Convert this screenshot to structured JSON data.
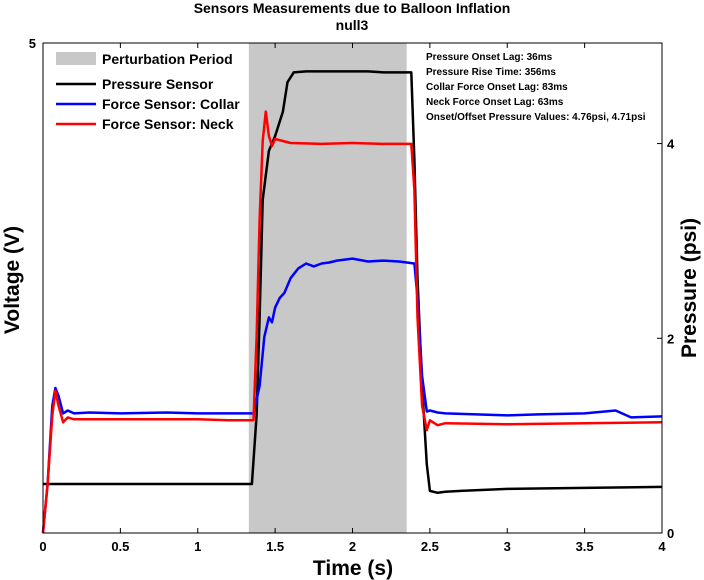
{
  "chart_data": {
    "type": "line",
    "title": "Sensors Measurements due to Balloon Inflation",
    "subtitle": "null3",
    "xlabel": "Time (s)",
    "ylabel": "Voltage (V)",
    "y2label": "Pressure (psi)",
    "xlim": [
      0,
      4
    ],
    "ylim": [
      0,
      5
    ],
    "y2lim": [
      0,
      5.033
    ],
    "x_ticks": [
      "0",
      "0.5",
      "1",
      "1.5",
      "2",
      "2.5",
      "3",
      "3.5",
      "4"
    ],
    "y_ticks": [
      "5"
    ],
    "y2_ticks": [
      "0",
      "2",
      "4"
    ],
    "grid": false,
    "legend_position": "top-left",
    "legend": [
      {
        "label": "Perturbation Period",
        "color": "#c8c8c8",
        "kind": "patch"
      },
      {
        "label": "Pressure Sensor",
        "color": "#000000",
        "kind": "line"
      },
      {
        "label": "Force Sensor: Collar",
        "color": "#0000ff",
        "kind": "line"
      },
      {
        "label": "Force Sensor: Neck",
        "color": "#ff0000",
        "kind": "line"
      }
    ],
    "shaded_region": {
      "x_start": 1.33,
      "x_end": 2.35,
      "color": "#c8c8c8"
    },
    "annotations": [
      "Pressure Onset Lag: 36ms",
      "Pressure Rise Time: 356ms",
      "Collar Force Onset Lag: 83ms",
      "Neck Force Onset Lag: 63ms",
      "Onset/Offset Pressure Values: 4.76psi, 4.71psi"
    ],
    "series": [
      {
        "name": "Pressure Sensor",
        "color": "#000000",
        "axis": "left",
        "x": [
          0,
          0.5,
          1.0,
          1.3,
          1.35,
          1.38,
          1.4,
          1.42,
          1.46,
          1.5,
          1.55,
          1.58,
          1.62,
          1.7,
          1.8,
          1.9,
          2.0,
          2.1,
          2.2,
          2.3,
          2.38,
          2.4,
          2.42,
          2.45,
          2.48,
          2.5,
          2.55,
          2.6,
          2.7,
          3.0,
          3.5,
          4.0
        ],
        "y": [
          0.5,
          0.5,
          0.5,
          0.5,
          0.5,
          1.2,
          2.2,
          3.4,
          3.9,
          4.05,
          4.3,
          4.6,
          4.7,
          4.71,
          4.71,
          4.71,
          4.71,
          4.71,
          4.7,
          4.7,
          4.7,
          3.8,
          2.6,
          1.5,
          0.7,
          0.43,
          0.41,
          0.42,
          0.43,
          0.45,
          0.46,
          0.47
        ]
      },
      {
        "name": "Force Sensor: Collar",
        "color": "#0000ff",
        "axis": "left",
        "x": [
          0.0,
          0.03,
          0.06,
          0.08,
          0.1,
          0.13,
          0.16,
          0.2,
          0.3,
          0.5,
          0.8,
          1.0,
          1.2,
          1.36,
          1.4,
          1.43,
          1.46,
          1.48,
          1.5,
          1.53,
          1.56,
          1.6,
          1.65,
          1.7,
          1.75,
          1.8,
          1.85,
          1.9,
          2.0,
          2.1,
          2.2,
          2.3,
          2.4,
          2.42,
          2.45,
          2.48,
          2.5,
          2.55,
          2.6,
          3.0,
          3.2,
          3.5,
          3.7,
          3.8,
          4.0
        ],
        "y": [
          0.0,
          0.5,
          1.3,
          1.48,
          1.4,
          1.22,
          1.25,
          1.22,
          1.23,
          1.22,
          1.23,
          1.22,
          1.22,
          1.22,
          1.5,
          2.0,
          2.2,
          2.15,
          2.3,
          2.4,
          2.45,
          2.6,
          2.7,
          2.75,
          2.72,
          2.75,
          2.76,
          2.78,
          2.8,
          2.77,
          2.78,
          2.77,
          2.75,
          2.4,
          1.6,
          1.24,
          1.25,
          1.23,
          1.22,
          1.2,
          1.21,
          1.22,
          1.25,
          1.18,
          1.19
        ]
      },
      {
        "name": "Force Sensor: Neck",
        "color": "#ff0000",
        "axis": "left",
        "x": [
          0.0,
          0.03,
          0.06,
          0.08,
          0.1,
          0.13,
          0.16,
          0.2,
          0.3,
          0.5,
          0.8,
          1.0,
          1.2,
          1.36,
          1.38,
          1.4,
          1.42,
          1.44,
          1.46,
          1.48,
          1.5,
          1.55,
          1.6,
          1.8,
          2.0,
          2.2,
          2.38,
          2.4,
          2.42,
          2.45,
          2.48,
          2.5,
          2.55,
          2.6,
          3.0,
          3.5,
          4.0
        ],
        "y": [
          0.0,
          0.5,
          1.2,
          1.45,
          1.3,
          1.13,
          1.18,
          1.16,
          1.16,
          1.16,
          1.16,
          1.16,
          1.15,
          1.15,
          2.0,
          3.2,
          4.0,
          4.3,
          4.05,
          3.95,
          4.02,
          4.0,
          3.98,
          3.97,
          3.98,
          3.97,
          3.97,
          3.5,
          2.2,
          1.3,
          1.05,
          1.15,
          1.1,
          1.12,
          1.11,
          1.12,
          1.13
        ]
      }
    ]
  }
}
